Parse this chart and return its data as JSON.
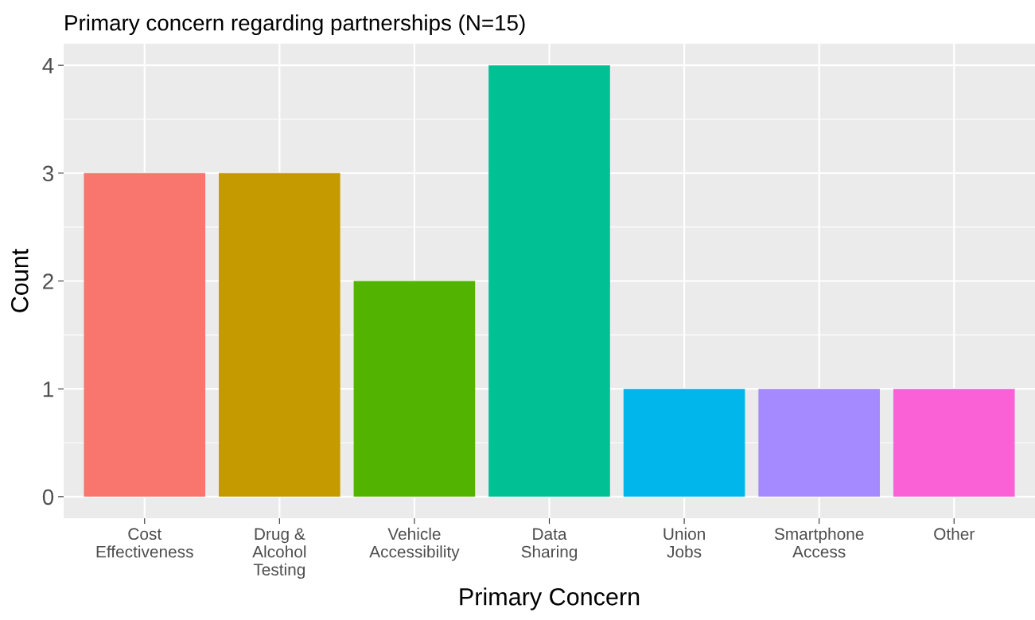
{
  "chart_data": {
    "type": "bar",
    "title": "Primary concern regarding partnerships (N=15)",
    "xlabel": "Primary Concern",
    "ylabel": "Count",
    "categories": [
      "Cost\nEffectiveness",
      "Drug &\nAlcohol\nTesting",
      "Vehicle\nAccessibility",
      "Data\nSharing",
      "Union\nJobs",
      "Smartphone\nAccess",
      "Other"
    ],
    "values": [
      3,
      3,
      2,
      4,
      1,
      1,
      1
    ],
    "colors": [
      "#f8766d",
      "#c49a00",
      "#53b400",
      "#00c094",
      "#00b6eb",
      "#a58aff",
      "#fb61d7"
    ],
    "ylim": [
      -0.2,
      4.2
    ],
    "yticks": [
      0,
      1,
      2,
      3,
      4
    ],
    "grid": true
  }
}
